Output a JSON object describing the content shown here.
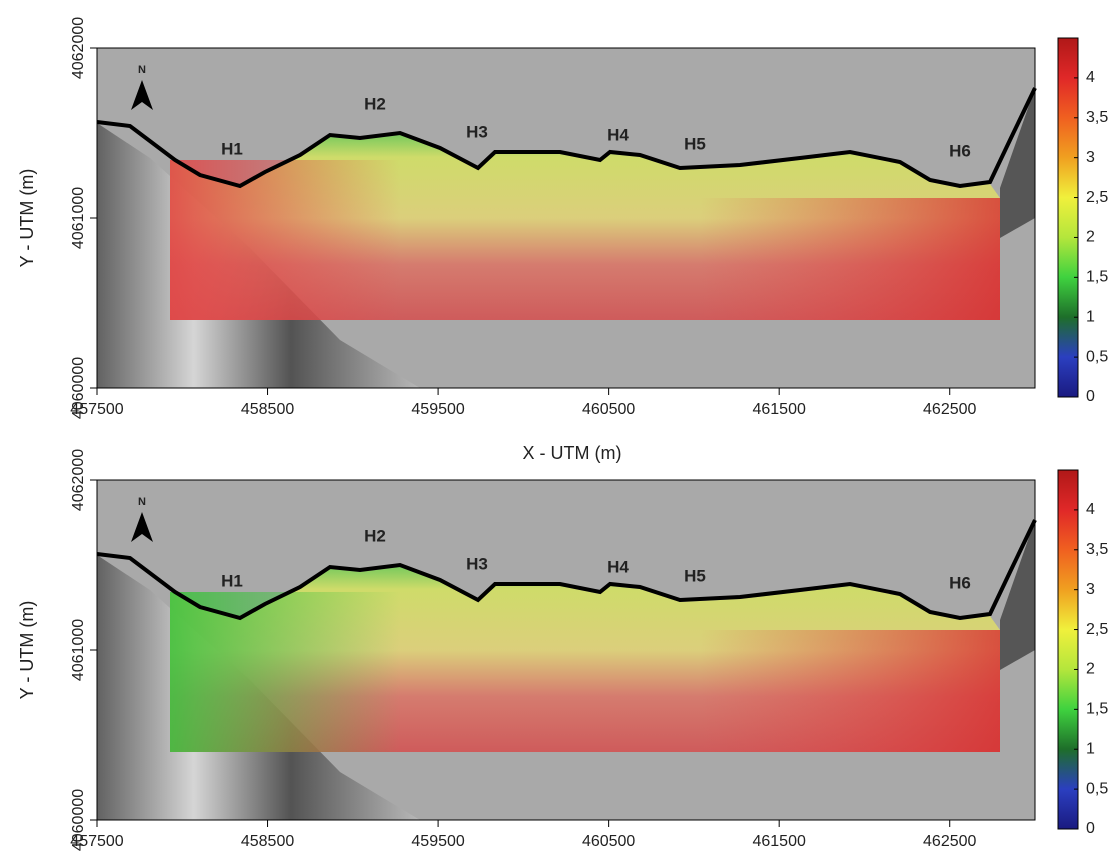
{
  "chart_data": [
    {
      "type": "heatmap",
      "x_label": "X - UTM (m)",
      "y_label": "Y - UTM (m)",
      "xlim": [
        457500,
        463000
      ],
      "ylim": [
        4060000,
        4062000
      ],
      "xticks": [
        457500,
        458500,
        459500,
        460500,
        461500,
        462500
      ],
      "yticks": [
        4060000,
        4061000,
        4062000
      ],
      "annotations": [
        "N",
        "H1",
        "H2",
        "H3",
        "H4",
        "H5",
        "H6"
      ],
      "colorbar": {
        "lim": [
          0,
          4.5
        ],
        "ticks": [
          0,
          {
            "value": 0.5,
            "label": "0,5"
          },
          1,
          {
            "value": 1.5,
            "label": "1,5"
          },
          2,
          {
            "value": 2.5,
            "label": "2,5"
          },
          3,
          {
            "value": 3.5,
            "label": "3,5"
          },
          4
        ],
        "colors": [
          "#1a1a80",
          "#2b3fc0",
          "#1e6e2a",
          "#3fd23f",
          "#b4e63c",
          "#f0f03c",
          "#f0a020",
          "#f06020",
          "#e02828",
          "#b01818"
        ]
      }
    },
    {
      "type": "heatmap",
      "y_label": "Y - UTM (m)",
      "xlim": [
        457500,
        463000
      ],
      "ylim": [
        4060000,
        4062000
      ],
      "xticks": [
        457500,
        458500,
        459500,
        460500,
        461500,
        462500
      ],
      "yticks": [
        4060000,
        4061000,
        4062000
      ],
      "annotations": [
        "N",
        "H1",
        "H2",
        "H3",
        "H4",
        "H5",
        "H6"
      ],
      "colorbar": {
        "lim": [
          0,
          4.5
        ],
        "ticks": [
          0,
          {
            "value": 0.5,
            "label": "0,5"
          },
          1,
          {
            "value": 1.5,
            "label": "1,5"
          },
          2,
          {
            "value": 2.5,
            "label": "2,5"
          },
          3,
          {
            "value": 3.5,
            "label": "3,5"
          },
          4
        ],
        "colors": [
          "#1a1a80",
          "#2b3fc0",
          "#1e6e2a",
          "#3fd23f",
          "#b4e63c",
          "#f0f03c",
          "#f0a020",
          "#f06020",
          "#e02828",
          "#b01818"
        ]
      }
    }
  ]
}
